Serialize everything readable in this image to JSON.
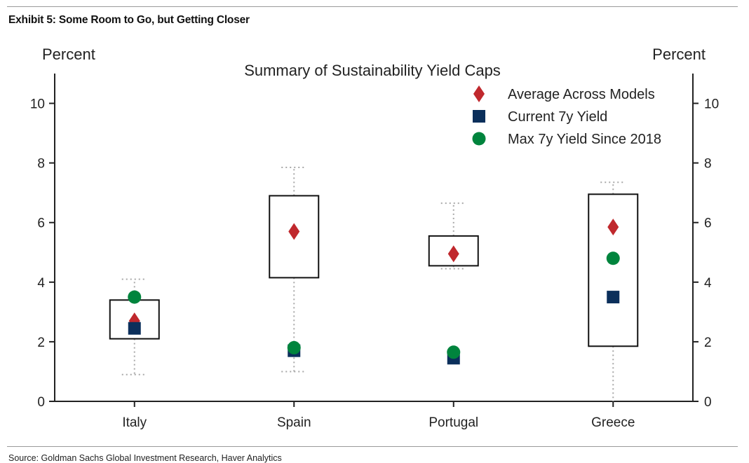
{
  "exhibit_title": "Exhibit 5: Some Room to Go, but Getting Closer",
  "source": "Source: Goldman Sachs Global Investment Research, Haver Analytics",
  "colors": {
    "average": "#c0282d",
    "current": "#0b2f5b",
    "max": "#00843d",
    "box": "#111111",
    "whisker": "#a8a8a8"
  },
  "chart_data": {
    "type": "box",
    "title": "Summary of Sustainability Yield Caps",
    "ylabel_left": "Percent",
    "ylabel_right": "Percent",
    "ylim": [
      0,
      11
    ],
    "yticks": [
      0,
      2,
      4,
      6,
      8,
      10
    ],
    "categories": [
      "Italy",
      "Spain",
      "Portugal",
      "Greece"
    ],
    "legend": {
      "position": "top-right",
      "entries": [
        "Average Across Models",
        "Current 7y Yield",
        "Max 7y Yield Since 2018"
      ]
    },
    "boxes": [
      {
        "category": "Italy",
        "whisker_low": 0.9,
        "q1": 2.1,
        "q3": 3.4,
        "whisker_high": 4.1
      },
      {
        "category": "Spain",
        "whisker_low": 1.0,
        "q1": 4.15,
        "q3": 6.9,
        "whisker_high": 7.85
      },
      {
        "category": "Portugal",
        "whisker_low": 4.45,
        "q1": 4.55,
        "q3": 5.55,
        "whisker_high": 6.65
      },
      {
        "category": "Greece",
        "whisker_low": 0.0,
        "q1": 1.85,
        "q3": 6.95,
        "whisker_high": 7.35
      }
    ],
    "series": [
      {
        "name": "Average Across Models",
        "marker": "diamond",
        "values": [
          2.7,
          5.7,
          4.95,
          5.85
        ]
      },
      {
        "name": "Current 7y Yield",
        "marker": "square",
        "values": [
          2.45,
          1.7,
          1.45,
          3.5
        ]
      },
      {
        "name": "Max 7y Yield Since 2018",
        "marker": "circle",
        "values": [
          3.5,
          1.8,
          1.65,
          4.8
        ]
      }
    ]
  }
}
